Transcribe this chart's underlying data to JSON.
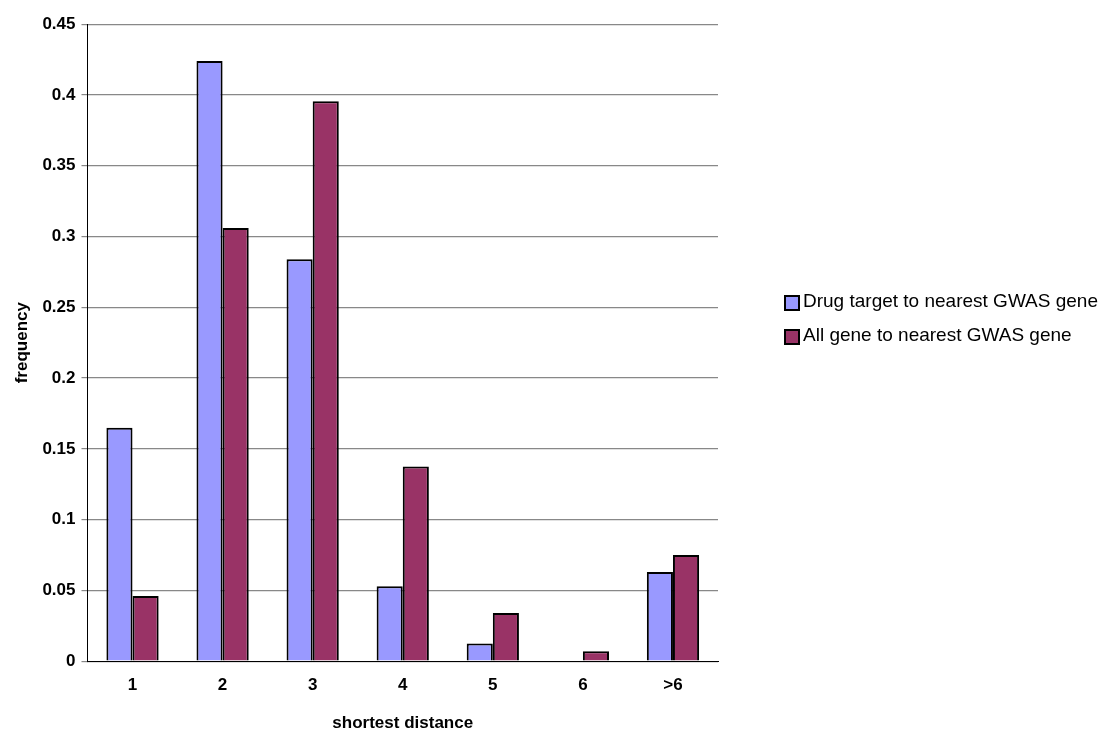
{
  "chart_data": {
    "type": "bar",
    "xlabel": "shortest distance",
    "ylabel": "frequency",
    "categories": [
      "1",
      "2",
      "3",
      "4",
      "5",
      "6",
      ">6"
    ],
    "series": [
      {
        "name": "Drug target to nearest GWAS gene",
        "color": "#9999ff",
        "values": [
          0.165,
          0.424,
          0.284,
          0.053,
          0.0125,
          0,
          0.063
        ]
      },
      {
        "name": "All gene to nearest GWAS gene",
        "color": "#993366",
        "values": [
          0.046,
          0.306,
          0.3955,
          0.1375,
          0.034,
          0.007,
          0.075
        ]
      }
    ],
    "ylim": [
      0,
      0.45
    ],
    "yticks": [
      0,
      0.05,
      0.1,
      0.15,
      0.2,
      0.25,
      0.3,
      0.35,
      0.4,
      0.45
    ],
    "grid": "y",
    "legend": "right"
  }
}
